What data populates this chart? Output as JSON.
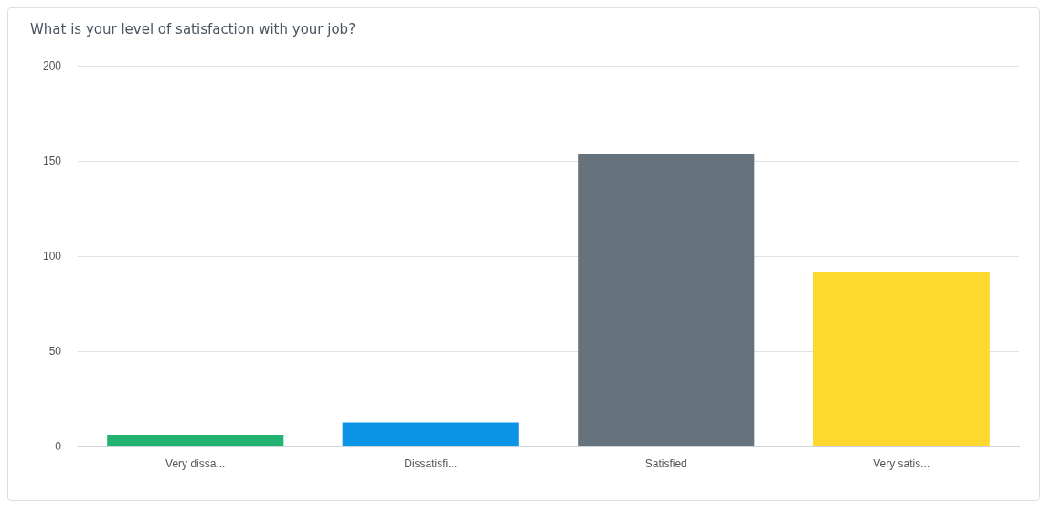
{
  "chart_data": {
    "type": "bar",
    "title": "What is your level of satisfaction with your job?",
    "categories": [
      "Very dissa...",
      "Dissatisfi...",
      "Satisfied",
      "Very satis..."
    ],
    "values": [
      6,
      13,
      154,
      92
    ],
    "colors": [
      "#21b36f",
      "#0b93e6",
      "#67737c",
      "#fdd92f"
    ],
    "ylim": [
      0,
      200
    ],
    "yticks": [
      0,
      50,
      100,
      150,
      200
    ],
    "grid": "y",
    "legend": false
  }
}
